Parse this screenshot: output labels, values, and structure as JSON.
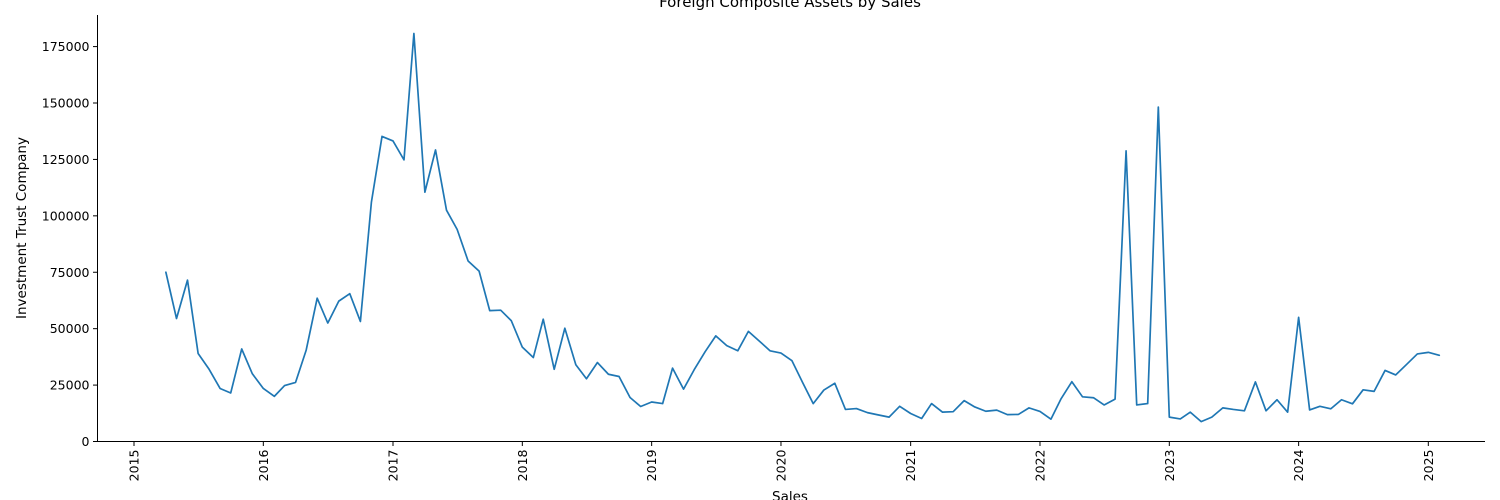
{
  "chart_data": {
    "type": "line",
    "title": "Foreign Composite Assets by Sales",
    "xlabel": "Sales",
    "ylabel": "Investment Trust Company",
    "xlim": [
      "2014-09-20",
      "2025-06-10"
    ],
    "ylim": [
      0,
      189000
    ],
    "x_ticks": [
      "2015-01-01",
      "2016-01-01",
      "2017-01-01",
      "2018-01-01",
      "2019-01-01",
      "2020-01-01",
      "2021-01-01",
      "2022-01-01",
      "2023-01-01",
      "2024-01-01",
      "2025-01-01"
    ],
    "x_tick_labels": [
      "2015",
      "2016",
      "2017",
      "2018",
      "2019",
      "2020",
      "2021",
      "2022",
      "2023",
      "2024",
      "2025"
    ],
    "y_ticks": [
      0,
      25000,
      50000,
      75000,
      100000,
      125000,
      150000,
      175000
    ],
    "y_tick_labels": [
      "0",
      "25000",
      "50000",
      "75000",
      "100000",
      "125000",
      "150000",
      "175000"
    ],
    "grid": false,
    "series_color": "#1f77b4",
    "series": [
      {
        "x": [
          "2015-04",
          "2015-05",
          "2015-06",
          "2015-07",
          "2015-08",
          "2015-09",
          "2015-10",
          "2015-11",
          "2015-12",
          "2016-01",
          "2016-02",
          "2016-03",
          "2016-04",
          "2016-05",
          "2016-06",
          "2016-07",
          "2016-08",
          "2016-09",
          "2016-10",
          "2016-11",
          "2016-12",
          "2017-01",
          "2017-02",
          "2017-03",
          "2017-04",
          "2017-05",
          "2017-06",
          "2017-07",
          "2017-08",
          "2017-09",
          "2017-10",
          "2017-11",
          "2017-12",
          "2018-01",
          "2018-02",
          "2018-03",
          "2018-04",
          "2018-05",
          "2018-06",
          "2018-07",
          "2018-08",
          "2018-09",
          "2018-10",
          "2018-11",
          "2018-12",
          "2019-01",
          "2019-02",
          "2019-03",
          "2019-04",
          "2019-05",
          "2019-06",
          "2019-07",
          "2019-08",
          "2019-09",
          "2019-10",
          "2019-11",
          "2019-12",
          "2020-01",
          "2020-02",
          "2020-03",
          "2020-04",
          "2020-05",
          "2020-06",
          "2020-07",
          "2020-08",
          "2020-09",
          "2020-10",
          "2020-11",
          "2020-12",
          "2021-01",
          "2021-02",
          "2021-03",
          "2021-04",
          "2021-05",
          "2021-06",
          "2021-07",
          "2021-08",
          "2021-09",
          "2021-10",
          "2021-11",
          "2021-12",
          "2022-01",
          "2022-02",
          "2022-03",
          "2022-04",
          "2022-05",
          "2022-06",
          "2022-07",
          "2022-08",
          "2022-09",
          "2022-10",
          "2022-11",
          "2022-12",
          "2023-01",
          "2023-02",
          "2023-03",
          "2023-04",
          "2023-05",
          "2023-06",
          "2023-07",
          "2023-08",
          "2023-09",
          "2023-10",
          "2023-11",
          "2023-12",
          "2024-01",
          "2024-02",
          "2024-03",
          "2024-04",
          "2024-05",
          "2024-06",
          "2024-07",
          "2024-08",
          "2024-09",
          "2024-10",
          "2024-11",
          "2024-12",
          "2025-01",
          "2025-02"
        ],
        "values": [
          75000,
          54500,
          71500,
          39000,
          32000,
          23500,
          21500,
          41000,
          30000,
          23500,
          20000,
          24800,
          26200,
          40500,
          63500,
          52500,
          62200,
          65500,
          53200,
          106000,
          135200,
          133200,
          124800,
          180800,
          110500,
          129200,
          102500,
          94000,
          80000,
          75500,
          58000,
          58200,
          53500,
          41800,
          37200,
          54200,
          32000,
          50200,
          34000,
          27800,
          35000,
          29800,
          28800,
          19500,
          15500,
          17500,
          16800,
          32500,
          23200,
          31800,
          39800,
          46800,
          42500,
          40200,
          48800,
          44500,
          40200,
          39200,
          35800,
          26500,
          16800,
          22800,
          25800,
          14200,
          14600,
          12800,
          11800,
          10800,
          15600,
          12400,
          10200,
          16800,
          13000,
          13200,
          18100,
          15300,
          13400,
          13900,
          11900,
          12000,
          14900,
          13300,
          9900,
          18800,
          26500,
          19800,
          19400,
          16200,
          18800,
          128800,
          16200,
          16800,
          148200,
          10800,
          10000,
          13000,
          8800,
          10800,
          14900,
          14200,
          13600,
          26400,
          13600,
          18500,
          13000,
          55000,
          14000,
          15600,
          14500,
          18500,
          16700,
          22900,
          22200,
          31500,
          29500,
          34200,
          38800,
          39500,
          38200
        ]
      }
    ]
  }
}
